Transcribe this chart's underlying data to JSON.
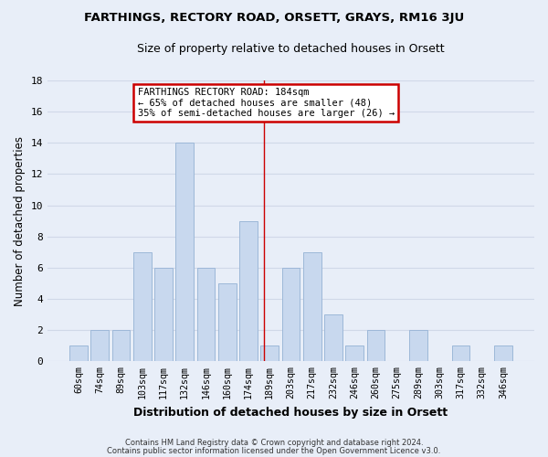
{
  "title": "FARTHINGS, RECTORY ROAD, ORSETT, GRAYS, RM16 3JU",
  "subtitle": "Size of property relative to detached houses in Orsett",
  "xlabel": "Distribution of detached houses by size in Orsett",
  "ylabel": "Number of detached properties",
  "bar_labels": [
    "60sqm",
    "74sqm",
    "89sqm",
    "103sqm",
    "117sqm",
    "132sqm",
    "146sqm",
    "160sqm",
    "174sqm",
    "189sqm",
    "203sqm",
    "217sqm",
    "232sqm",
    "246sqm",
    "260sqm",
    "275sqm",
    "289sqm",
    "303sqm",
    "317sqm",
    "332sqm",
    "346sqm"
  ],
  "bar_values": [
    1,
    2,
    2,
    7,
    6,
    14,
    6,
    5,
    9,
    1,
    6,
    7,
    3,
    1,
    2,
    0,
    2,
    0,
    1,
    0,
    1
  ],
  "bar_color": "#c8d8ee",
  "bar_edge_color": "#9db8d8",
  "grid_color": "#d0d8e8",
  "vline_color": "#cc0000",
  "vline_pos": 8.75,
  "annotation_title": "FARTHINGS RECTORY ROAD: 184sqm",
  "annotation_line1": "← 65% of detached houses are smaller (48)",
  "annotation_line2": "35% of semi-detached houses are larger (26) →",
  "annotation_box_facecolor": "#ffffff",
  "annotation_box_edgecolor": "#cc0000",
  "bg_color": "#e8eef8",
  "ylim": [
    0,
    18
  ],
  "yticks": [
    0,
    2,
    4,
    6,
    8,
    10,
    12,
    14,
    16,
    18
  ],
  "footnote1": "Contains HM Land Registry data © Crown copyright and database right 2024.",
  "footnote2": "Contains public sector information licensed under the Open Government Licence v3.0."
}
